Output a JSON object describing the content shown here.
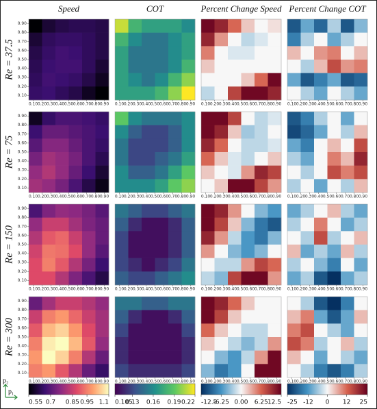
{
  "chart_data": {
    "type": "heatmap-grid",
    "columns": [
      "Speed",
      "COT",
      "Percent Change Speed",
      "Percent Change COT"
    ],
    "rows": [
      "Re = 37.5",
      "Re = 75",
      "Re = 150",
      "Re = 300"
    ],
    "x_label": "p₁",
    "y_label": "p₂",
    "xlim": [
      0.05,
      0.95
    ],
    "ylim": [
      0.05,
      0.95
    ],
    "xticks": [
      {
        "value": 0.1,
        "label": "0.10"
      },
      {
        "value": 0.2,
        "label": "0.20"
      },
      {
        "value": 0.3,
        "label": "0.30"
      },
      {
        "value": 0.4,
        "label": "0.40"
      },
      {
        "value": 0.5,
        "label": "0.50"
      },
      {
        "value": 0.6,
        "label": "0.60"
      },
      {
        "value": 0.7,
        "label": "0.70"
      },
      {
        "value": 0.8,
        "label": "0.80"
      },
      {
        "value": 0.9,
        "label": "0.90"
      }
    ],
    "yticks": [
      {
        "value": 0.1,
        "label": "0.10"
      },
      {
        "value": 0.2,
        "label": "0.20"
      },
      {
        "value": 0.3,
        "label": "0.30"
      },
      {
        "value": 0.4,
        "label": "0.40"
      },
      {
        "value": 0.5,
        "label": "0.50"
      },
      {
        "value": 0.6,
        "label": "0.60"
      },
      {
        "value": 0.7,
        "label": "0.70"
      },
      {
        "value": 0.8,
        "label": "0.80"
      },
      {
        "value": 0.9,
        "label": "0.90"
      }
    ],
    "colorbars": [
      {
        "lim": [
          0.55,
          1.1
        ],
        "ticks": [
          0.55,
          0.7,
          0.85,
          0.95,
          1.1
        ],
        "cmap": [
          "#000004",
          "#3b0f70",
          "#8c2981",
          "#de4968",
          "#fe9f6d",
          "#fcfdbf"
        ]
      },
      {
        "lim": [
          0.105,
          0.22
        ],
        "ticks": [
          0.105,
          0.13,
          0.16,
          0.19,
          0.22
        ],
        "cmap": [
          "#440154",
          "#3b528b",
          "#21918c",
          "#5ec962",
          "#fde725"
        ]
      },
      {
        "lim": [
          -12.5,
          12.5
        ],
        "ticks": [
          -12.5,
          -6.25,
          {
            "value": 0,
            "label": "0.00"
          },
          6.25,
          12.5
        ],
        "cmap": [
          "#053061",
          "#4393c3",
          "#f7f7f7",
          "#d6604d",
          "#67001f"
        ]
      },
      {
        "lim": [
          -25,
          25
        ],
        "ticks": [
          -25,
          -12,
          0,
          12,
          25
        ],
        "cmap": [
          "#053061",
          "#4393c3",
          "#f7f7f7",
          "#d6604d",
          "#67001f"
        ]
      }
    ],
    "panels": [
      [
        {
          "values": [
            [
              0.55,
              0.6,
              0.62,
              0.63,
              0.63,
              0.62
            ],
            [
              0.6,
              0.64,
              0.65,
              0.65,
              0.64,
              0.62
            ],
            [
              0.62,
              0.65,
              0.67,
              0.66,
              0.64,
              0.62
            ],
            [
              0.63,
              0.66,
              0.67,
              0.67,
              0.64,
              0.6
            ],
            [
              0.64,
              0.67,
              0.66,
              0.65,
              0.62,
              0.58
            ],
            [
              0.65,
              0.66,
              0.64,
              0.62,
              0.58,
              0.55
            ]
          ]
        },
        {
          "values": [
            [
              0.21,
              0.18,
              0.17,
              0.17,
              0.17,
              0.16
            ],
            [
              0.18,
              0.16,
              0.15,
              0.15,
              0.16,
              0.17
            ],
            [
              0.17,
              0.15,
              0.15,
              0.15,
              0.16,
              0.17
            ],
            [
              0.17,
              0.15,
              0.15,
              0.15,
              0.16,
              0.18
            ],
            [
              0.17,
              0.16,
              0.15,
              0.16,
              0.18,
              0.2
            ],
            [
              0.17,
              0.17,
              0.17,
              0.18,
              0.2,
              0.22
            ]
          ]
        },
        {
          "values": [
            [
              12,
              10,
              6,
              2,
              0,
              1
            ],
            [
              10,
              4,
              0,
              -2,
              -1,
              0
            ],
            [
              5,
              0,
              -1,
              -1,
              0,
              0
            ],
            [
              2,
              0,
              0,
              0,
              0,
              0
            ],
            [
              0,
              0,
              0,
              2,
              6,
              12
            ],
            [
              -2,
              0,
              8,
              12,
              12,
              10
            ]
          ]
        },
        {
          "values": [
            [
              -20,
              -10,
              -18,
              -5,
              -20,
              -8
            ],
            [
              -15,
              -5,
              0,
              -10,
              -5,
              0
            ],
            [
              5,
              0,
              8,
              10,
              0,
              5
            ],
            [
              0,
              -5,
              5,
              15,
              8,
              10
            ],
            [
              -10,
              -20,
              -15,
              -10,
              -20,
              -18
            ],
            [
              0,
              -5,
              -10,
              0,
              -5,
              -10
            ]
          ]
        }
      ],
      [
        {
          "values": [
            [
              0.58,
              0.65,
              0.68,
              0.68,
              0.67,
              0.65
            ],
            [
              0.66,
              0.72,
              0.72,
              0.7,
              0.68,
              0.66
            ],
            [
              0.7,
              0.76,
              0.76,
              0.72,
              0.68,
              0.65
            ],
            [
              0.74,
              0.8,
              0.78,
              0.74,
              0.68,
              0.63
            ],
            [
              0.78,
              0.82,
              0.78,
              0.72,
              0.66,
              0.6
            ],
            [
              0.8,
              0.78,
              0.74,
              0.68,
              0.62,
              0.57
            ]
          ]
        },
        {
          "values": [
            [
              0.19,
              0.16,
              0.15,
              0.15,
              0.15,
              0.16
            ],
            [
              0.16,
              0.14,
              0.13,
              0.13,
              0.14,
              0.16
            ],
            [
              0.15,
              0.13,
              0.13,
              0.13,
              0.14,
              0.16
            ],
            [
              0.15,
              0.13,
              0.13,
              0.14,
              0.15,
              0.17
            ],
            [
              0.16,
              0.14,
              0.14,
              0.15,
              0.17,
              0.19
            ],
            [
              0.16,
              0.16,
              0.16,
              0.17,
              0.19,
              0.2
            ]
          ]
        },
        {
          "values": [
            [
              12,
              12,
              8,
              0,
              -2,
              -1
            ],
            [
              12,
              10,
              2,
              -3,
              -2,
              0
            ],
            [
              10,
              6,
              0,
              -2,
              -2,
              -1
            ],
            [
              6,
              2,
              -1,
              -2,
              0,
              2
            ],
            [
              2,
              0,
              -1,
              4,
              10,
              8
            ],
            [
              0,
              2,
              12,
              12,
              8,
              4
            ]
          ]
        },
        {
          "values": [
            [
              -20,
              -15,
              -5,
              0,
              -10,
              0
            ],
            [
              -22,
              -18,
              -10,
              0,
              -5,
              5
            ],
            [
              -10,
              -15,
              0,
              5,
              0,
              15
            ],
            [
              -5,
              -10,
              0,
              10,
              5,
              20
            ],
            [
              0,
              -5,
              0,
              15,
              10,
              15
            ],
            [
              -5,
              0,
              -10,
              0,
              -5,
              5
            ]
          ]
        }
      ],
      [
        {
          "values": [
            [
              0.68,
              0.75,
              0.78,
              0.77,
              0.74,
              0.7
            ],
            [
              0.78,
              0.85,
              0.85,
              0.8,
              0.75,
              0.72
            ],
            [
              0.82,
              0.9,
              0.92,
              0.85,
              0.78,
              0.72
            ],
            [
              0.86,
              0.94,
              0.93,
              0.88,
              0.78,
              0.7
            ],
            [
              0.88,
              0.95,
              0.9,
              0.82,
              0.74,
              0.66
            ],
            [
              0.88,
              0.88,
              0.82,
              0.75,
              0.68,
              0.62
            ]
          ]
        },
        {
          "values": [
            [
              0.15,
              0.14,
              0.13,
              0.13,
              0.14,
              0.15
            ],
            [
              0.14,
              0.12,
              0.11,
              0.11,
              0.12,
              0.14
            ],
            [
              0.13,
              0.11,
              0.11,
              0.11,
              0.12,
              0.14
            ],
            [
              0.13,
              0.11,
              0.11,
              0.11,
              0.12,
              0.14
            ],
            [
              0.13,
              0.12,
              0.11,
              0.12,
              0.13,
              0.15
            ],
            [
              0.14,
              0.13,
              0.13,
              0.14,
              0.15,
              0.16
            ]
          ]
        },
        {
          "values": [
            [
              12,
              10,
              4,
              0,
              -4,
              -6
            ],
            [
              12,
              8,
              2,
              -4,
              -8,
              -10
            ],
            [
              10,
              4,
              -2,
              -6,
              -8,
              -4
            ],
            [
              4,
              0,
              -4,
              -6,
              -4,
              0
            ],
            [
              0,
              -2,
              -2,
              4,
              8,
              6
            ],
            [
              -2,
              -4,
              8,
              12,
              12,
              4
            ]
          ]
        },
        {
          "values": [
            [
              -10,
              -5,
              0,
              5,
              -5,
              -10
            ],
            [
              -5,
              0,
              10,
              0,
              -10,
              -5
            ],
            [
              0,
              -5,
              15,
              -5,
              0,
              5
            ],
            [
              5,
              -10,
              -5,
              -10,
              5,
              -5
            ],
            [
              -5,
              0,
              -8,
              -15,
              0,
              -10
            ],
            [
              -10,
              -5,
              -20,
              -25,
              -10,
              -5
            ]
          ]
        }
      ],
      [
        {
          "values": [
            [
              0.72,
              0.8,
              0.85,
              0.85,
              0.82,
              0.78
            ],
            [
              0.85,
              0.95,
              0.98,
              0.92,
              0.85,
              0.8
            ],
            [
              0.9,
              1.02,
              1.05,
              0.98,
              0.88,
              0.8
            ],
            [
              0.95,
              1.08,
              1.1,
              1.02,
              0.9,
              0.78
            ],
            [
              0.98,
              1.1,
              1.05,
              0.95,
              0.82,
              0.72
            ],
            [
              0.95,
              0.98,
              0.9,
              0.82,
              0.72,
              0.65
            ]
          ]
        },
        {
          "values": [
            [
              0.15,
              0.15,
              0.14,
              0.14,
              0.15,
              0.15
            ],
            [
              0.14,
              0.12,
              0.11,
              0.11,
              0.12,
              0.14
            ],
            [
              0.13,
              0.11,
              0.11,
              0.11,
              0.11,
              0.13
            ],
            [
              0.12,
              0.11,
              0.11,
              0.11,
              0.11,
              0.12
            ],
            [
              0.12,
              0.11,
              0.11,
              0.11,
              0.11,
              0.12
            ],
            [
              0.13,
              0.12,
              0.12,
              0.12,
              0.12,
              0.13
            ]
          ]
        },
        {
          "values": [
            [
              12,
              10,
              6,
              2,
              0,
              0
            ],
            [
              12,
              8,
              2,
              0,
              0,
              0
            ],
            [
              6,
              2,
              0,
              -2,
              -2,
              0
            ],
            [
              2,
              0,
              -2,
              -4,
              -2,
              4
            ],
            [
              0,
              -4,
              -6,
              -2,
              4,
              12
            ],
            [
              -4,
              -8,
              -6,
              0,
              12,
              12
            ]
          ]
        },
        {
          "values": [
            [
              0,
              -5,
              -20,
              -25,
              -15,
              0
            ],
            [
              5,
              10,
              -10,
              -20,
              -10,
              5
            ],
            [
              10,
              15,
              0,
              -5,
              -10,
              0
            ],
            [
              15,
              10,
              -5,
              0,
              5,
              -5
            ],
            [
              5,
              0,
              -10,
              0,
              -5,
              -10
            ],
            [
              0,
              -5,
              -15,
              -20,
              -15,
              -5
            ]
          ]
        }
      ]
    ]
  }
}
